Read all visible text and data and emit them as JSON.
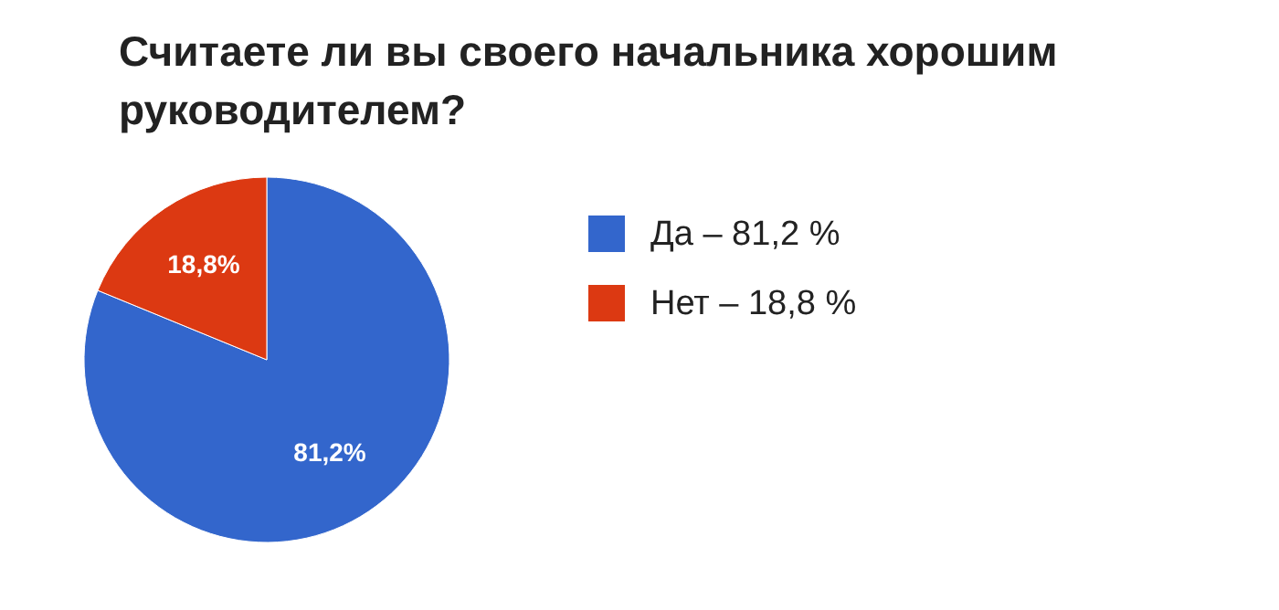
{
  "chart_data": {
    "type": "pie",
    "title": "Считаете ли вы своего начальника хорошим руководителем?",
    "categories": [
      "Да – 81,2 %",
      "Нет – 18,8 %"
    ],
    "values": [
      81.2,
      18.8
    ],
    "colors": [
      "#3366cc",
      "#dc3912"
    ],
    "value_labels": [
      "81,2%",
      "18,8%"
    ],
    "legend": "right"
  }
}
